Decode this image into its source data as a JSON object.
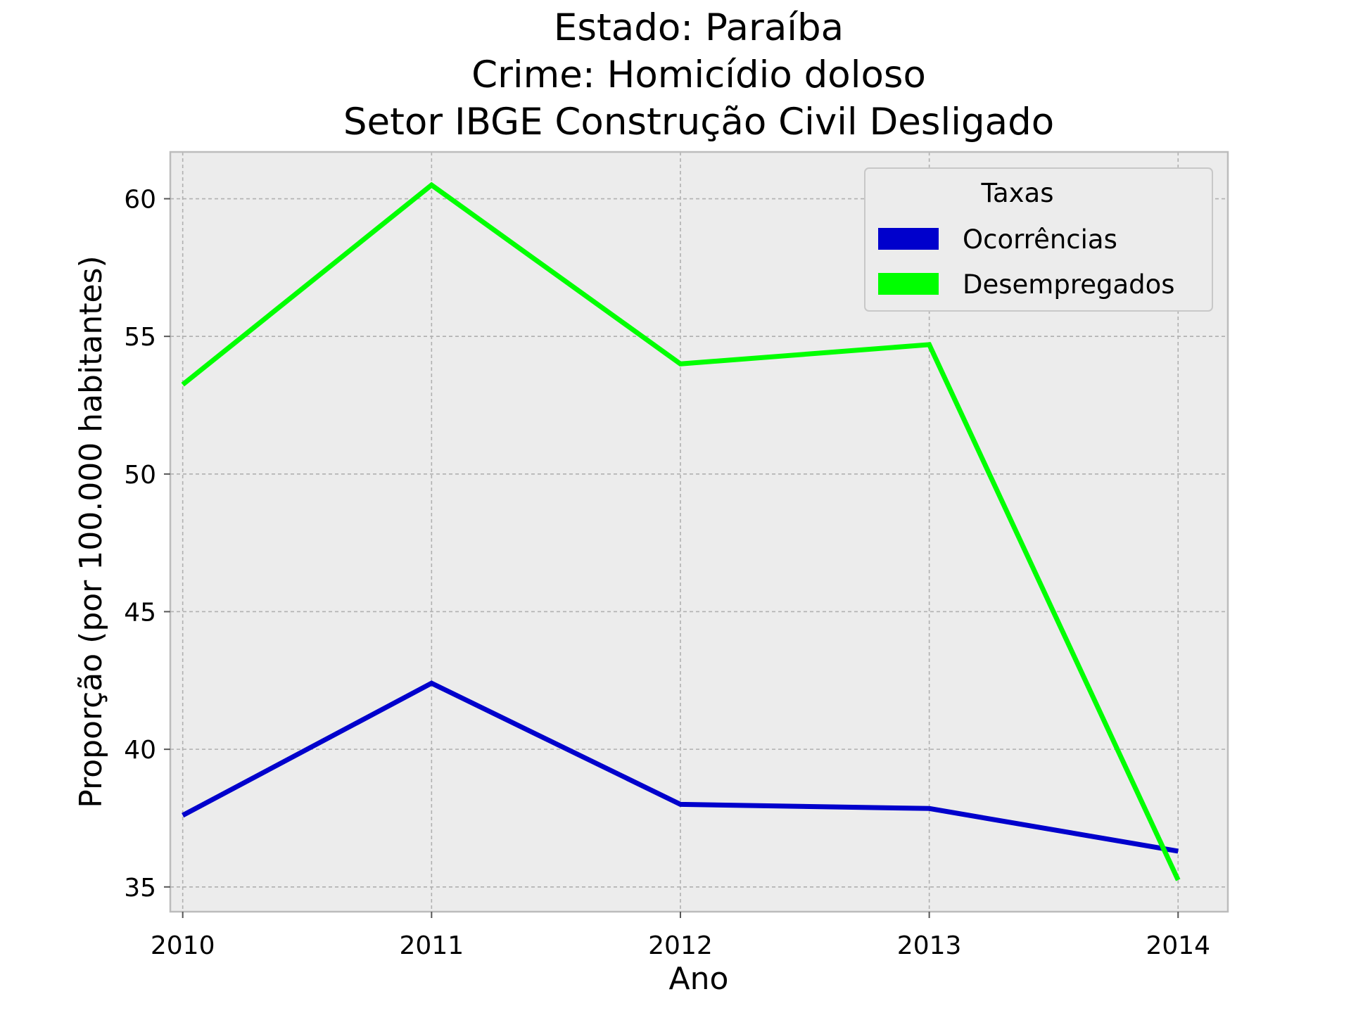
{
  "chart_data": {
    "type": "line",
    "title_lines": [
      "Estado: Paraíba",
      "Crime: Homicídio doloso",
      "Setor IBGE  Construção Civil   Desligado"
    ],
    "xlabel": "Ano",
    "ylabel": "Proporção (por 100.000 habitantes)",
    "x": [
      2010,
      2011,
      2012,
      2013,
      2014
    ],
    "x_tick_labels": [
      "2010",
      "2011",
      "2012",
      "2013",
      "2014"
    ],
    "y_ticks": [
      35,
      40,
      45,
      50,
      55,
      60
    ],
    "y_tick_labels": [
      "35",
      "40",
      "45",
      "50",
      "55",
      "60"
    ],
    "xlim": [
      2009.95,
      2014.2
    ],
    "ylim": [
      34.1,
      61.7
    ],
    "grid": true,
    "legend": {
      "title": "Taxas",
      "position": "top-right"
    },
    "series": [
      {
        "name": "Ocorrências",
        "color": "#0000cc",
        "values": [
          37.6,
          42.4,
          38.0,
          37.85,
          36.3
        ]
      },
      {
        "name": "Desempregados",
        "color": "#00ff00",
        "values": [
          53.25,
          60.5,
          54.0,
          54.7,
          35.25
        ]
      }
    ],
    "colors": {
      "plot_background": "#ececec",
      "frame": "#bcbcbc",
      "grid": "#b0b0b0"
    }
  }
}
